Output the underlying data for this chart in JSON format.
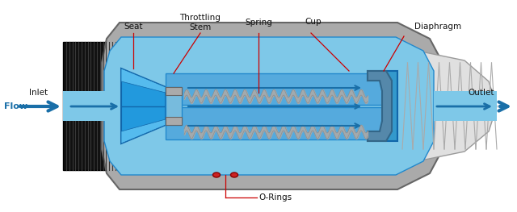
{
  "bg_color": "#ffffff",
  "labels": {
    "flow": "Flow",
    "inlet": "Inlet",
    "outlet": "Outlet",
    "o_rings": "O-Rings",
    "seat": "Seat",
    "throttling_stem": "Throttling\nStem",
    "spring": "Spring",
    "cup": "Cup",
    "diaphragm": "Diaphragm"
  },
  "colors": {
    "blue_light": "#7ec8e8",
    "blue_mid": "#3a9ad9",
    "blue_dark": "#1a6fa8",
    "black_body": "#1a1a1a",
    "gray_metal": "#888888",
    "gray_light": "#cccccc",
    "gray_dark": "#555555",
    "silver": "#c0c0c0",
    "red_line": "#cc0000",
    "blue_arrow": "#1a6fa8",
    "white": "#ffffff",
    "dark_gray": "#333333"
  }
}
